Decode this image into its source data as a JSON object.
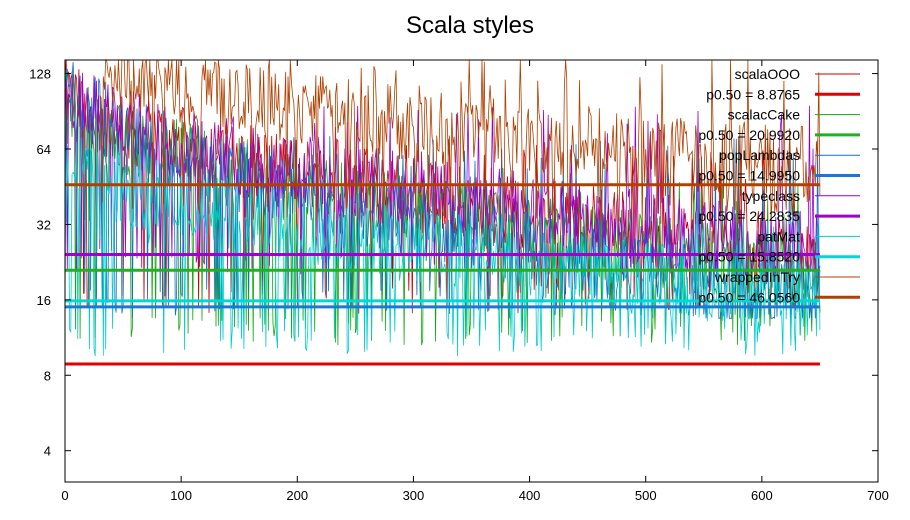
{
  "chart_data": {
    "type": "line",
    "title": "Scala styles",
    "xlabel": "",
    "ylabel": "",
    "xlim": [
      0,
      700
    ],
    "ylim": [
      3,
      145
    ],
    "yscale": "log2",
    "grid": false,
    "legend_position": "top-right",
    "x_ticks": [
      "0",
      "100",
      "200",
      "300",
      "400",
      "500",
      "600",
      "700"
    ],
    "y_ticks": [
      "4",
      "8",
      "16",
      "32",
      "64",
      "128"
    ],
    "series": [
      {
        "name": "scalaOOO",
        "color": "#cc0000",
        "x_range": [
          0,
          650
        ],
        "start": 110,
        "end": 24,
        "low": 14,
        "high": 60
      },
      {
        "name": "scalacCake",
        "color": "#13a813",
        "x_range": [
          0,
          650
        ],
        "start": 100,
        "end": 20,
        "low": 10.5,
        "high": 40
      },
      {
        "name": "popLambdas",
        "color": "#1070c0",
        "x_range": [
          0,
          650
        ],
        "start": 120,
        "end": 15,
        "low": 13.5,
        "high": 60
      },
      {
        "name": "typeclass",
        "color": "#9a00cc",
        "x_range": [
          0,
          650
        ],
        "start": 110,
        "end": 25,
        "low": 20,
        "high": 80
      },
      {
        "name": "patMat",
        "color": "#00cccc",
        "x_range": [
          0,
          650
        ],
        "start": 60,
        "end": 16,
        "low": 9.5,
        "high": 30
      },
      {
        "name": "wrappedInTry",
        "color": "#b04000",
        "x_range": [
          30,
          650
        ],
        "start": 145,
        "end": 55,
        "low": 32,
        "high": 140
      }
    ],
    "medians": [
      {
        "label": "p0.50 = 8.8765",
        "value": 8.8765,
        "color": "#e00000"
      },
      {
        "label": "p0.50 = 20.9920",
        "value": 20.992,
        "color": "#20b020"
      },
      {
        "label": "p0.50 = 14.9950",
        "value": 14.995,
        "color": "#1878d8"
      },
      {
        "label": "p0.50 = 24.2835",
        "value": 24.2835,
        "color": "#a000d0"
      },
      {
        "label": "p0.50 = 15.8520",
        "value": 15.852,
        "color": "#00d8d8"
      },
      {
        "label": "p0.50 = 46.0560",
        "value": 46.056,
        "color": "#b04000"
      }
    ]
  }
}
